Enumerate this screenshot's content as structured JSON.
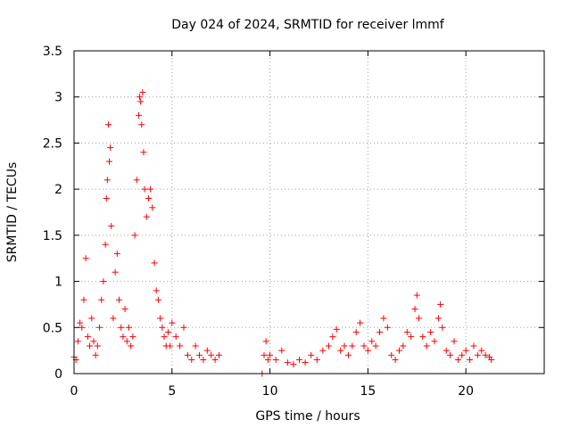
{
  "chart_data": {
    "type": "scatter",
    "title": "Day 024 of 2024, SRMTID for receiver lmmf",
    "xlabel": "GPS time / hours",
    "ylabel": "SRMTID / TECUs",
    "xlim": [
      0,
      24
    ],
    "ylim": [
      0,
      3.5
    ],
    "xticks": [
      0,
      5,
      10,
      15,
      20
    ],
    "yticks": [
      0,
      0.5,
      1,
      1.5,
      2,
      2.5,
      3,
      3.5
    ],
    "xtick_labels": [
      "0",
      "5",
      "10",
      "15",
      "20"
    ],
    "ytick_labels": [
      "0",
      "0.5",
      "1",
      "1.5",
      "2",
      "2.5",
      "3",
      "3.5"
    ],
    "grid": true,
    "marker": "+",
    "color": "#ff0000",
    "series": [
      {
        "name": "SRMTID",
        "x": [
          0.0,
          0.1,
          0.2,
          0.3,
          0.4,
          0.5,
          0.6,
          0.7,
          0.8,
          0.9,
          1.0,
          1.1,
          1.2,
          1.3,
          1.4,
          1.5,
          1.6,
          1.65,
          1.7,
          1.75,
          1.8,
          1.85,
          1.9,
          2.0,
          2.1,
          2.2,
          2.3,
          2.4,
          2.5,
          2.6,
          2.7,
          2.8,
          2.9,
          3.0,
          3.1,
          3.2,
          3.3,
          3.35,
          3.4,
          3.45,
          3.5,
          3.55,
          3.6,
          3.7,
          3.8,
          3.9,
          4.0,
          4.1,
          4.2,
          4.3,
          4.4,
          4.5,
          4.6,
          4.7,
          4.8,
          4.9,
          5.0,
          5.2,
          5.4,
          5.6,
          5.8,
          6.0,
          6.2,
          6.4,
          6.6,
          6.8,
          7.0,
          7.2,
          7.4,
          9.6,
          9.7,
          9.8,
          9.9,
          10.0,
          10.3,
          10.6,
          10.9,
          11.2,
          11.5,
          11.8,
          12.1,
          12.4,
          12.7,
          13.0,
          13.2,
          13.4,
          13.6,
          13.8,
          14.0,
          14.2,
          14.4,
          14.6,
          14.8,
          15.0,
          15.2,
          15.4,
          15.6,
          15.8,
          16.0,
          16.2,
          16.4,
          16.6,
          16.8,
          17.0,
          17.2,
          17.4,
          17.5,
          17.6,
          17.8,
          18.0,
          18.2,
          18.4,
          18.6,
          18.7,
          18.8,
          19.0,
          19.2,
          19.4,
          19.6,
          19.8,
          20.0,
          20.2,
          20.4,
          20.6,
          20.8,
          21.0,
          21.2,
          21.3
        ],
        "y": [
          0.18,
          0.15,
          0.35,
          0.55,
          0.5,
          0.8,
          1.25,
          0.4,
          0.3,
          0.6,
          0.35,
          0.2,
          0.3,
          0.5,
          0.8,
          1.0,
          1.4,
          1.9,
          2.1,
          2.7,
          2.3,
          2.45,
          1.6,
          0.6,
          1.1,
          1.3,
          0.8,
          0.5,
          0.4,
          0.7,
          0.35,
          0.5,
          0.3,
          0.4,
          1.5,
          2.1,
          2.8,
          3.0,
          2.95,
          2.7,
          3.05,
          2.4,
          2.0,
          1.7,
          1.9,
          2.0,
          1.8,
          1.2,
          0.9,
          0.8,
          0.6,
          0.5,
          0.4,
          0.3,
          0.45,
          0.3,
          0.55,
          0.4,
          0.3,
          0.5,
          0.2,
          0.15,
          0.3,
          0.2,
          0.15,
          0.25,
          0.2,
          0.15,
          0.2,
          0.0,
          0.2,
          0.35,
          0.15,
          0.2,
          0.15,
          0.25,
          0.12,
          0.1,
          0.15,
          0.12,
          0.2,
          0.15,
          0.25,
          0.3,
          0.4,
          0.48,
          0.25,
          0.3,
          0.2,
          0.3,
          0.45,
          0.55,
          0.3,
          0.25,
          0.35,
          0.3,
          0.45,
          0.6,
          0.5,
          0.2,
          0.15,
          0.25,
          0.3,
          0.45,
          0.4,
          0.7,
          0.85,
          0.6,
          0.4,
          0.3,
          0.45,
          0.35,
          0.6,
          0.75,
          0.5,
          0.25,
          0.2,
          0.35,
          0.15,
          0.2,
          0.25,
          0.15,
          0.3,
          0.2,
          0.25,
          0.2,
          0.18,
          0.15
        ]
      }
    ]
  }
}
